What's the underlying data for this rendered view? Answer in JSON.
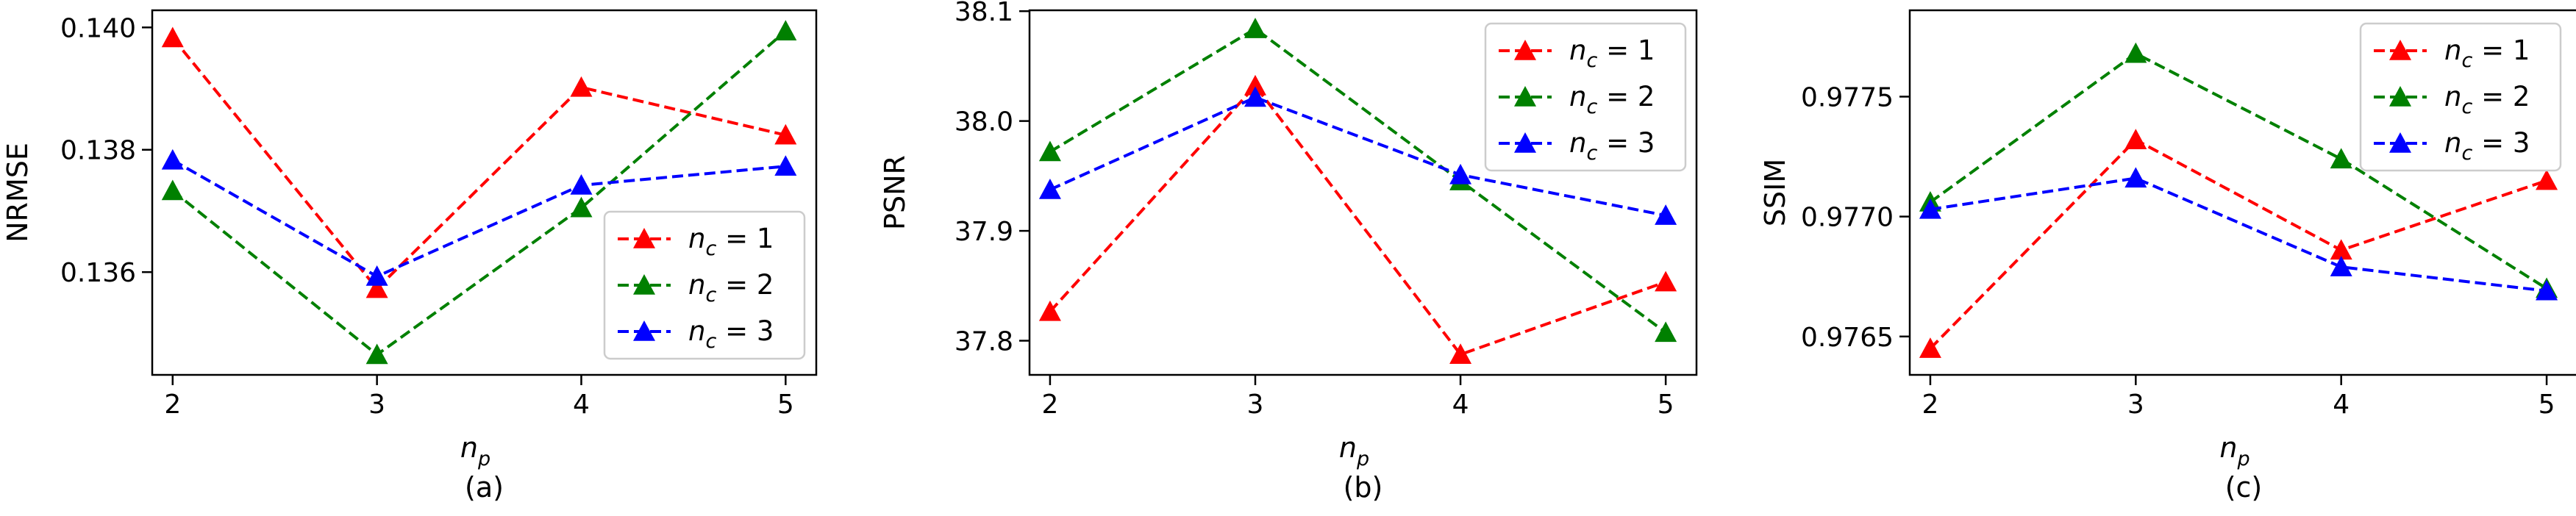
{
  "chart_data": [
    {
      "type": "line",
      "caption": "(a)",
      "xlabel": "n",
      "xlabel_sub": "p",
      "ylabel": "NRMSE",
      "x": [
        2,
        3,
        4,
        5
      ],
      "xticks": [
        "2",
        "3",
        "4",
        "5"
      ],
      "yticks": [
        "0.136",
        "0.138",
        "0.140"
      ],
      "ytick_values": [
        0.136,
        0.138,
        0.14
      ],
      "xlim": [
        1.9,
        5.15
      ],
      "ylim": [
        0.13432,
        0.14028
      ],
      "legend_position": "lower-right",
      "series": [
        {
          "name": "n_c = 1",
          "legend_main": "n",
          "legend_sub": "c",
          "legend_rest": " = 1",
          "color": "#ff0000",
          "values": [
            0.13983,
            0.13573,
            0.13902,
            0.13824
          ]
        },
        {
          "name": "n_c = 2",
          "legend_main": "n",
          "legend_sub": "c",
          "legend_rest": " = 2",
          "color": "#008000",
          "values": [
            0.13733,
            0.13465,
            0.13705,
            0.13994
          ]
        },
        {
          "name": "n_c = 3",
          "legend_main": "n",
          "legend_sub": "c",
          "legend_rest": " = 3",
          "color": "#0000ff",
          "values": [
            0.13783,
            0.13593,
            0.13742,
            0.13773
          ]
        }
      ]
    },
    {
      "type": "line",
      "caption": "(b)",
      "xlabel": "n",
      "xlabel_sub": "p",
      "ylabel": "PSNR",
      "x": [
        2,
        3,
        4,
        5
      ],
      "xticks": [
        "2",
        "3",
        "4",
        "5"
      ],
      "yticks": [
        "37.8",
        "37.9",
        "38.0",
        "38.1"
      ],
      "ytick_values": [
        37.8,
        37.9,
        38.0,
        38.1
      ],
      "xlim": [
        1.9,
        5.15
      ],
      "ylim": [
        37.7689,
        38.1008
      ],
      "legend_position": "upper-right",
      "series": [
        {
          "name": "n_c = 1",
          "legend_main": "n",
          "legend_sub": "c",
          "legend_rest": " = 1",
          "color": "#ff0000",
          "values": [
            37.8265,
            38.032,
            37.7875,
            37.8535
          ]
        },
        {
          "name": "n_c = 2",
          "legend_main": "n",
          "legend_sub": "c",
          "legend_rest": " = 2",
          "color": "#008000",
          "values": [
            37.972,
            38.084,
            37.9455,
            37.8075
          ]
        },
        {
          "name": "n_c = 3",
          "legend_main": "n",
          "legend_sub": "c",
          "legend_rest": " = 3",
          "color": "#0000ff",
          "values": [
            37.9375,
            38.0215,
            37.951,
            37.914
          ]
        }
      ]
    },
    {
      "type": "line",
      "caption": "(c)",
      "xlabel": "n",
      "xlabel_sub": "p",
      "ylabel": "SSIM",
      "x": [
        2,
        3,
        4,
        5
      ],
      "xticks": [
        "2",
        "3",
        "4",
        "5"
      ],
      "yticks": [
        "0.9765",
        "0.9770",
        "0.9775"
      ],
      "ytick_values": [
        0.9765,
        0.977,
        0.9775
      ],
      "xlim": [
        1.9,
        5.15
      ],
      "ylim": [
        0.97634,
        0.97786
      ],
      "legend_position": "upper-right",
      "series": [
        {
          "name": "n_c = 1",
          "legend_main": "n",
          "legend_sub": "c",
          "legend_rest": " = 1",
          "color": "#ff0000",
          "values": [
            0.97645,
            0.97732,
            0.97686,
            0.97715
          ]
        },
        {
          "name": "n_c = 2",
          "legend_main": "n",
          "legend_sub": "c",
          "legend_rest": " = 2",
          "color": "#008000",
          "values": [
            0.97706,
            0.97768,
            0.97724,
            0.9767
          ]
        },
        {
          "name": "n_c = 3",
          "legend_main": "n",
          "legend_sub": "c",
          "legend_rest": " = 3",
          "color": "#0000ff",
          "values": [
            0.97703,
            0.97716,
            0.97679,
            0.97669
          ]
        }
      ]
    }
  ]
}
